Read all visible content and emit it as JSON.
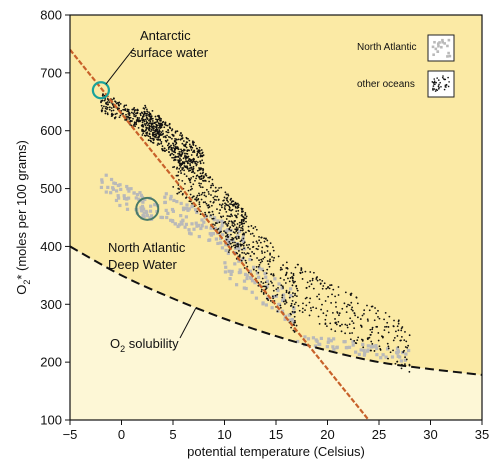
{
  "chart_data": {
    "type": "scatter",
    "title": "",
    "xlabel": "potential temperature (Celsius)",
    "ylabel": "O2* (moles per 100 grams)",
    "ylabel_parts": [
      "O",
      "2",
      "* (moles per 100 grams)"
    ],
    "xlim": [
      -5,
      35
    ],
    "ylim": [
      100,
      800
    ],
    "xticks": [
      -5,
      0,
      5,
      10,
      15,
      20,
      25,
      30,
      35
    ],
    "yticks": [
      100,
      200,
      300,
      400,
      500,
      600,
      700,
      800
    ],
    "grid": false,
    "colors": {
      "above_solubility_fill": "#fbeaa5",
      "below_solubility_fill": "#fdf7d6",
      "other_oceans": "#111111",
      "north_atlantic": "#b9b9b9",
      "trend_line": "#c8612a",
      "antarctic_marker": "#1aa39b",
      "nadw_marker": "#4a7a68",
      "solubility_curve": "#111111"
    },
    "series": [
      {
        "name": "other oceans",
        "style": "black dots",
        "clusters": [
          {
            "x": [
              -2,
              4
            ],
            "y": [
              600,
              650
            ]
          },
          {
            "x": [
              2,
              8
            ],
            "y": [
              540,
              620
            ]
          },
          {
            "x": [
              5,
              12
            ],
            "y": [
              420,
              540
            ]
          },
          {
            "x": [
              10,
              17
            ],
            "y": [
              300,
              450
            ]
          },
          {
            "x": [
              16,
              28
            ],
            "y": [
              220,
              340
            ]
          }
        ]
      },
      {
        "name": "North Atlantic",
        "style": "grey squares",
        "clusters": [
          {
            "x": [
              -2,
              4
            ],
            "y": [
              450,
              510
            ]
          },
          {
            "x": [
              4,
              12
            ],
            "y": [
              400,
              470
            ]
          },
          {
            "x": [
              10,
              17
            ],
            "y": [
              290,
              380
            ]
          },
          {
            "x": [
              17,
              28
            ],
            "y": [
              210,
              240
            ]
          }
        ]
      }
    ],
    "trend_line": {
      "x": [
        -5,
        24
      ],
      "y": [
        740,
        100
      ]
    },
    "solubility_curve": {
      "x": [
        -5,
        0,
        5,
        10,
        15,
        20,
        25,
        30,
        35
      ],
      "y": [
        400,
        350,
        310,
        275,
        245,
        220,
        200,
        188,
        178
      ]
    },
    "markers": [
      {
        "name": "Antarctic surface water",
        "x": -2,
        "y": 670
      },
      {
        "name": "North Atlantic Deep Water",
        "x": 2.5,
        "y": 465
      }
    ],
    "annotations": {
      "antarctic": [
        "Antarctic",
        "surface water"
      ],
      "nadw": [
        "North Atlantic",
        "Deep Water"
      ],
      "solubility": [
        "O",
        "2",
        " solubility"
      ]
    },
    "legend": {
      "placement": "top-right",
      "entries": [
        {
          "label": "North Atlantic",
          "style": "grey squares"
        },
        {
          "label": "other oceans",
          "style": "black dots"
        }
      ]
    }
  }
}
